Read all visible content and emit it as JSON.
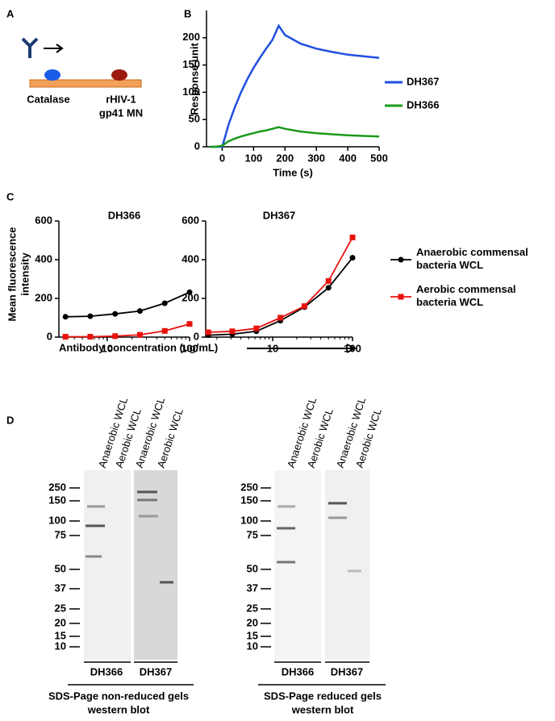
{
  "panel_labels": [
    "A",
    "B",
    "C",
    "D"
  ],
  "panel_a": {
    "labels": [
      "Catalase",
      "rHIV-1",
      "gp41 MN"
    ]
  },
  "chart_data": [
    {
      "type": "line",
      "xlabel": "Time (s)",
      "ylabel": "Response unit",
      "x": [
        -40,
        -20,
        0,
        20,
        40,
        60,
        80,
        100,
        120,
        140,
        160,
        180,
        200,
        250,
        300,
        350,
        400,
        450,
        500
      ],
      "xlim": [
        -50,
        500
      ],
      "ylim": [
        0,
        250
      ],
      "xticks": [
        0,
        100,
        200,
        300,
        400,
        500
      ],
      "yticks": [
        0,
        50,
        100,
        150,
        200
      ],
      "series": [
        {
          "name": "DH367",
          "color": "#1f4fe0",
          "values": [
            0,
            0,
            0,
            40,
            72,
            100,
            124,
            145,
            163,
            180,
            196,
            222,
            205,
            189,
            180,
            174,
            169,
            166,
            163
          ]
        },
        {
          "name": "DH366",
          "color": "#1a9a1a",
          "values": [
            0,
            0,
            2,
            10,
            15,
            19,
            22,
            25,
            28,
            30,
            33,
            36,
            33,
            28,
            25,
            23,
            21,
            20,
            19
          ]
        }
      ]
    },
    {
      "type": "line",
      "title": "DH366",
      "ylabel": [
        "Mean fluorescence",
        "intensity"
      ],
      "xlabel": "Antibody concentration (ug/mL)",
      "log_x": true,
      "x": [
        3.125,
        6.25,
        12.5,
        25,
        50,
        100
      ],
      "xlim": [
        2.6,
        100
      ],
      "ylim": [
        0,
        600
      ],
      "xticks": [
        10,
        100
      ],
      "yticks": [
        0,
        200,
        400,
        600
      ],
      "series": [
        {
          "name": "Anaerobic commensal bacteria WCL",
          "color": "#000000",
          "marker": "circle",
          "values": [
            105,
            108,
            120,
            135,
            175,
            232
          ]
        },
        {
          "name": "Aerobic commensal bacteria WCL",
          "color": "#e8120c",
          "marker": "square",
          "values": [
            2,
            2,
            5,
            12,
            32,
            68
          ]
        }
      ]
    },
    {
      "type": "line",
      "title": "DH367",
      "log_x": true,
      "x": [
        1.5625,
        3.125,
        6.25,
        12.5,
        25,
        50,
        100
      ],
      "xlim": [
        1.45,
        100
      ],
      "ylim": [
        0,
        600
      ],
      "xticks": [
        10,
        100
      ],
      "yticks": [
        0,
        200,
        400,
        600
      ],
      "series": [
        {
          "color": "#000000",
          "marker": "circle",
          "values": [
            10,
            15,
            30,
            85,
            155,
            255,
            410
          ]
        },
        {
          "color": "#e8120c",
          "marker": "square",
          "values": [
            25,
            30,
            45,
            100,
            160,
            290,
            515
          ]
        }
      ]
    }
  ],
  "panel_d": {
    "blots": [
      {
        "lanes": [
          "Anaerobic WCL",
          "Aerobic WCL",
          "Anaerobic WCL",
          "Aerobic WCL"
        ],
        "markers": [
          "250",
          "150",
          "100",
          "75",
          "50",
          "37",
          "25",
          "20",
          "15",
          "10"
        ],
        "antibodies": [
          "DH366",
          "DH367"
        ],
        "caption": [
          "SDS-Page non-reduced gels",
          "western blot"
        ]
      },
      {
        "lanes": [
          "Anaerobic WCL",
          "Aerobic WCL",
          "Anaerobic WCL",
          "Aerobic WCL"
        ],
        "markers": [
          "250",
          "150",
          "100",
          "75",
          "50",
          "37",
          "25",
          "20",
          "15",
          "10"
        ],
        "antibodies": [
          "DH366",
          "DH367"
        ],
        "caption": [
          "SDS-Page reduced gels",
          "western blot"
        ]
      }
    ]
  }
}
